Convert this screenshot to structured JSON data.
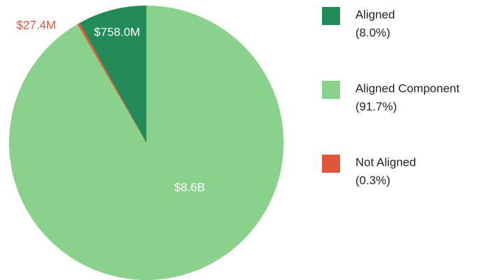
{
  "chart_data": {
    "type": "pie",
    "categories": [
      "Aligned",
      "Aligned Component",
      "Not Aligned"
    ],
    "values": [
      758000000,
      8600000000,
      27400000
    ],
    "value_labels": [
      "$758.0M",
      "$8.6B",
      "$27.4M"
    ],
    "legend_labels": [
      "(8.0%)",
      "(91.7%)",
      "(0.3%)"
    ],
    "colors": [
      "#238b57",
      "#8ad18c",
      "#e2553d"
    ]
  }
}
